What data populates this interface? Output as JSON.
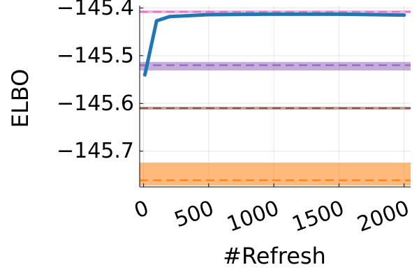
{
  "chart_data": {
    "type": "line",
    "title": "",
    "xlabel": "#Refresh",
    "ylabel": "ELBO",
    "xlim": [
      -30,
      2050
    ],
    "ylim": [
      -145.775,
      -145.395
    ],
    "grid": true,
    "legend": "none",
    "x_ticks": [
      0,
      500,
      1000,
      1500,
      2000
    ],
    "x_tick_labels": [
      "0",
      "500",
      "1000",
      "1500",
      "2000"
    ],
    "y_ticks": [
      -145.7,
      -145.6,
      -145.5,
      -145.4
    ],
    "y_tick_labels": [
      "−145.7",
      "−145.6",
      "−145.5",
      "−145.4"
    ],
    "series": [
      {
        "color": "#1f77b4",
        "x": [
          10,
          100,
          200,
          500,
          1000,
          1500,
          2000
        ],
        "y": [
          -145.54,
          -145.427,
          -145.418,
          -145.414,
          -145.413,
          -145.413,
          -145.415
        ]
      }
    ],
    "reference_lines": [
      {
        "color": "#e377c2",
        "y": -145.408,
        "band": [
          -145.411,
          -145.405
        ]
      },
      {
        "color": "#9467bd",
        "y": -145.52,
        "band": [
          -145.531,
          -145.513
        ]
      },
      {
        "color": "#8c564b",
        "y": -145.61,
        "band": [
          -145.613,
          -145.607
        ]
      },
      {
        "color": "#ff7f0e",
        "y": -145.761,
        "band": [
          -145.772,
          -145.724
        ]
      }
    ]
  }
}
